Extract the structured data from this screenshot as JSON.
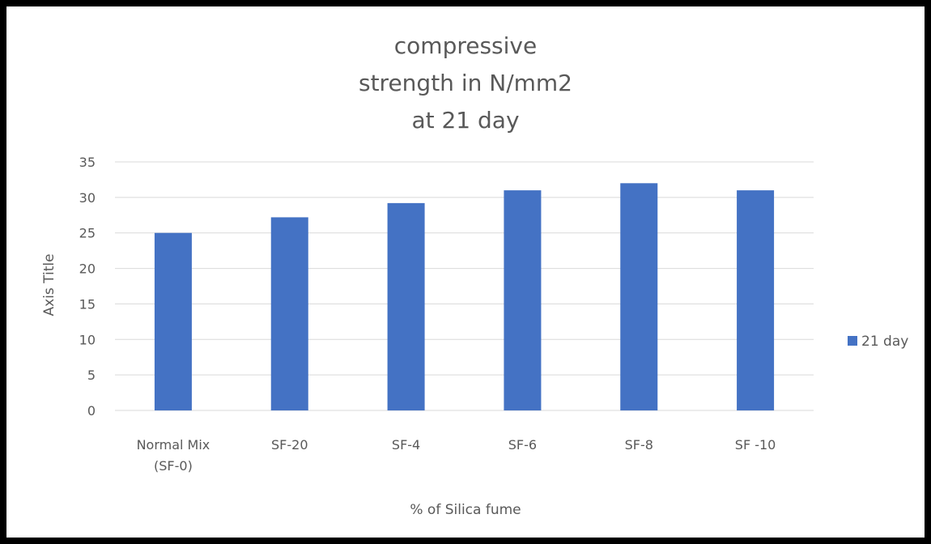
{
  "chart_data": {
    "type": "bar",
    "title_lines": [
      "compressive",
      "strength in N/mm2",
      "at  21 day"
    ],
    "xlabel": "% of Silica fume",
    "ylabel": "Axis Title",
    "categories": [
      [
        "Normal  Mix",
        "(SF-0)"
      ],
      [
        "SF-20"
      ],
      [
        "SF-4"
      ],
      [
        "SF-6"
      ],
      [
        "SF-8"
      ],
      [
        "SF -10"
      ]
    ],
    "series": [
      {
        "name": "21 day",
        "values": [
          25,
          27.2,
          29.2,
          31,
          32,
          31
        ]
      }
    ],
    "ylim": [
      0,
      35
    ],
    "yticks": [
      0,
      5,
      10,
      15,
      20,
      25,
      30,
      35
    ],
    "grid": true,
    "legend_position": "right",
    "colors": {
      "bar": "#4472C4",
      "grid": "#D9D9D9",
      "text": "#595959",
      "border": "#000000"
    }
  }
}
